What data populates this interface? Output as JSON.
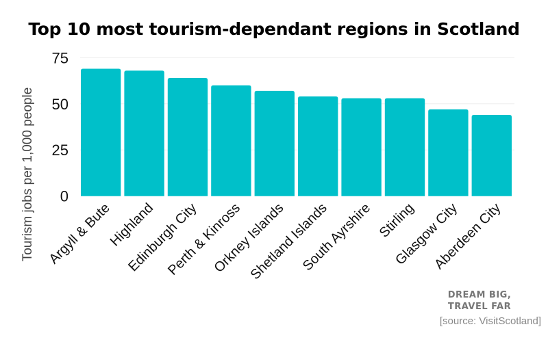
{
  "chart_data": {
    "type": "bar",
    "title": "Top 10 most tourism-dependant regions in Scotland",
    "xlabel": "",
    "ylabel": "Tourism jobs per 1,000 people",
    "ylim": [
      0,
      75
    ],
    "yticks": [
      0,
      25,
      50,
      75
    ],
    "grid": true,
    "bar_color": "#00c0c9",
    "categories": [
      "Argyll & Bute",
      "Highland",
      "Edinburgh City",
      "Perth & Kinross",
      "Orkney Islands",
      "Shetland Islands",
      "South Ayrshire",
      "Stirling",
      "Glasgow City",
      "Aberdeen City"
    ],
    "values": [
      69,
      68,
      64,
      60,
      57,
      54,
      53,
      53,
      47,
      44
    ]
  },
  "brand": {
    "line1": "DREAM BIG,",
    "line2": "TRAVEL FAR"
  },
  "source": "[source: VisitScotland]"
}
